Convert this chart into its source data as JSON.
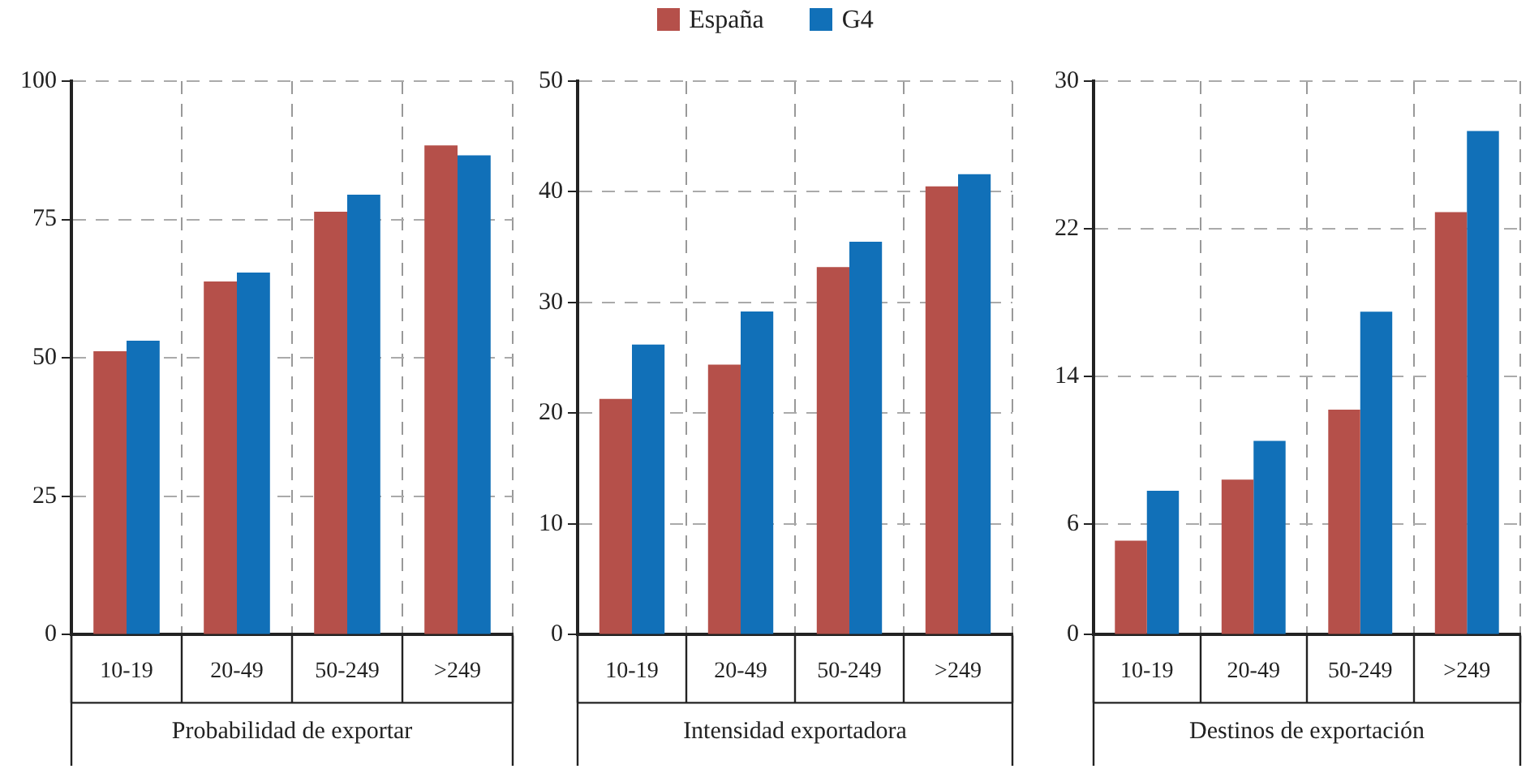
{
  "chart_data": [
    {
      "type": "bar",
      "xlabel": "Probabilidad de exportar",
      "categories": [
        "10-19",
        "20-49",
        "50-249",
        ">249"
      ],
      "legend": "top",
      "grid": true,
      "ylim": [
        0,
        100
      ],
      "yticks": [
        0,
        25,
        50,
        75,
        100
      ],
      "series": [
        {
          "name": "España",
          "color": "#b5504a",
          "values": [
            51.2,
            63.8,
            76.4,
            88.4
          ]
        },
        {
          "name": "G4",
          "color": "#1170b8",
          "values": [
            53.1,
            65.4,
            79.5,
            86.6
          ]
        }
      ]
    },
    {
      "type": "bar",
      "xlabel": "Intensidad exportadora",
      "categories": [
        "10-19",
        "20-49",
        "50-249",
        ">249"
      ],
      "grid": true,
      "ylim": [
        0,
        50
      ],
      "yticks": [
        0,
        10,
        20,
        30,
        40,
        50
      ],
      "series": [
        {
          "color": "#b5504a",
          "values": [
            21.3,
            24.4,
            33.2,
            40.5
          ]
        },
        {
          "color": "#1170b8",
          "values": [
            26.2,
            29.2,
            35.5,
            41.6
          ]
        }
      ]
    },
    {
      "type": "bar",
      "xlabel": "Destinos de exportación",
      "categories": [
        "10-19",
        "20-49",
        "50-249",
        ">249"
      ],
      "grid": true,
      "ylim": [
        0,
        30
      ],
      "yticks": [
        0,
        6,
        14,
        22,
        30
      ],
      "series": [
        {
          "color": "#b5504a",
          "values": [
            5.1,
            8.4,
            12.2,
            22.9
          ]
        },
        {
          "color": "#1170b8",
          "values": [
            7.8,
            10.5,
            17.5,
            27.3
          ]
        }
      ]
    }
  ]
}
